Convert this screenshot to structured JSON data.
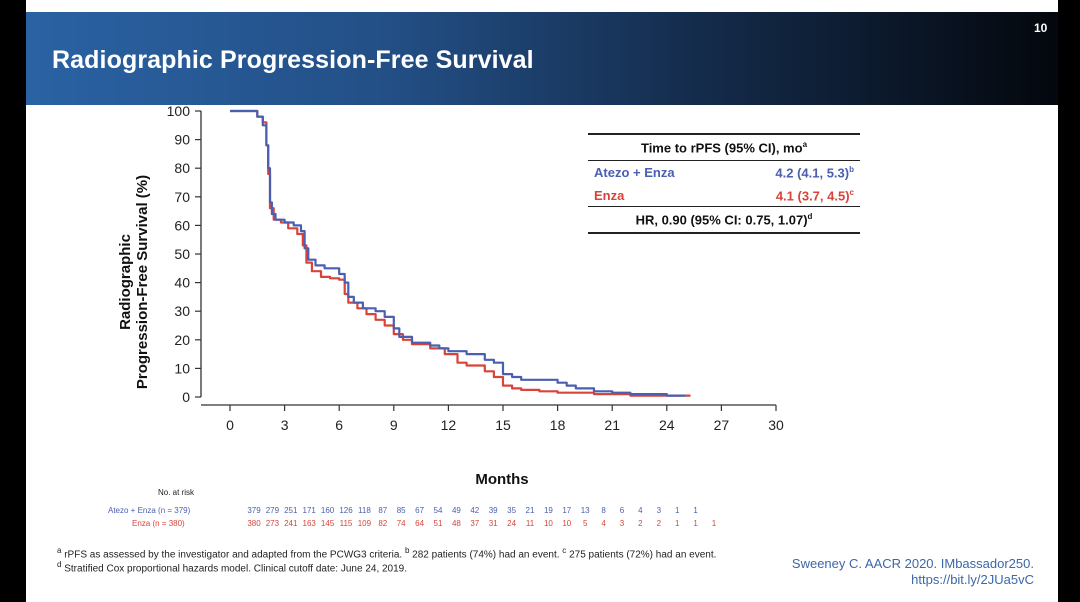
{
  "slide": {
    "title": "Radiographic Progression-Free Survival",
    "page_number": "10"
  },
  "chart_data": {
    "type": "line",
    "title": "",
    "xlabel": "Months",
    "ylabel_line1": "Radiographic",
    "ylabel_line2": "Progression-Free Survival (%)",
    "xlim": [
      0,
      30
    ],
    "ylim": [
      0,
      100
    ],
    "x_ticks": [
      0,
      3,
      6,
      9,
      12,
      15,
      18,
      21,
      24,
      27,
      30
    ],
    "y_ticks": [
      0,
      10,
      20,
      30,
      40,
      50,
      60,
      70,
      80,
      90,
      100
    ],
    "series": [
      {
        "name": "Atezo + Enza",
        "color": "#4a5fb0",
        "points": [
          [
            0,
            100
          ],
          [
            1,
            100
          ],
          [
            1.5,
            98
          ],
          [
            1.8,
            95
          ],
          [
            2.0,
            88
          ],
          [
            2.1,
            80
          ],
          [
            2.2,
            68
          ],
          [
            2.3,
            64
          ],
          [
            2.5,
            62
          ],
          [
            3.0,
            61
          ],
          [
            3.5,
            60
          ],
          [
            3.9,
            58
          ],
          [
            4.1,
            52
          ],
          [
            4.3,
            48
          ],
          [
            4.7,
            46
          ],
          [
            5.2,
            45
          ],
          [
            6.0,
            43
          ],
          [
            6.3,
            40
          ],
          [
            6.5,
            35
          ],
          [
            6.8,
            33
          ],
          [
            7.3,
            31
          ],
          [
            8.0,
            30
          ],
          [
            8.5,
            28
          ],
          [
            9.0,
            24
          ],
          [
            9.3,
            21
          ],
          [
            10.0,
            19
          ],
          [
            11.0,
            18
          ],
          [
            11.5,
            17
          ],
          [
            12.0,
            16
          ],
          [
            13.0,
            15
          ],
          [
            14.0,
            13
          ],
          [
            14.5,
            12
          ],
          [
            15.0,
            8
          ],
          [
            15.5,
            7
          ],
          [
            16.0,
            6
          ],
          [
            17.0,
            6
          ],
          [
            18.0,
            5
          ],
          [
            18.5,
            4
          ],
          [
            19.0,
            3
          ],
          [
            20.0,
            2
          ],
          [
            21.0,
            1.5
          ],
          [
            22.0,
            1
          ],
          [
            23.0,
            1
          ],
          [
            24.0,
            0.5
          ],
          [
            25.0,
            0.5
          ]
        ]
      },
      {
        "name": "Enza",
        "color": "#d8443a",
        "points": [
          [
            0,
            100
          ],
          [
            1,
            100
          ],
          [
            1.5,
            98
          ],
          [
            1.8,
            96
          ],
          [
            2.0,
            88
          ],
          [
            2.1,
            78
          ],
          [
            2.2,
            66
          ],
          [
            2.4,
            62
          ],
          [
            2.8,
            61
          ],
          [
            3.2,
            59
          ],
          [
            3.7,
            57
          ],
          [
            4.0,
            53
          ],
          [
            4.2,
            47
          ],
          [
            4.5,
            44
          ],
          [
            5.0,
            42
          ],
          [
            5.5,
            41.5
          ],
          [
            6.0,
            41
          ],
          [
            6.3,
            36
          ],
          [
            6.5,
            33
          ],
          [
            7.0,
            31
          ],
          [
            7.5,
            29
          ],
          [
            8.0,
            27
          ],
          [
            8.5,
            25
          ],
          [
            9.0,
            22
          ],
          [
            9.5,
            20
          ],
          [
            10.0,
            18.5
          ],
          [
            11.0,
            17
          ],
          [
            11.8,
            15
          ],
          [
            12.5,
            12
          ],
          [
            13.0,
            11
          ],
          [
            14.0,
            9
          ],
          [
            14.5,
            7
          ],
          [
            15.0,
            4
          ],
          [
            15.5,
            3
          ],
          [
            16.0,
            2.5
          ],
          [
            17.0,
            2
          ],
          [
            18.0,
            1.5
          ],
          [
            19.0,
            1.5
          ],
          [
            20.0,
            1
          ],
          [
            21.0,
            1
          ],
          [
            22.0,
            0.5
          ],
          [
            23.0,
            0.5
          ],
          [
            24.0,
            0.5
          ],
          [
            25.3,
            0.5
          ]
        ]
      }
    ],
    "at_risk": {
      "title": "No. at risk",
      "rows": [
        {
          "label": "Atezo + Enza (n = 379)",
          "color": "#4a5fb0",
          "values": [
            "379",
            "279",
            "251",
            "171",
            "160",
            "126",
            "118",
            "87",
            "85",
            "67",
            "54",
            "49",
            "42",
            "39",
            "35",
            "21",
            "19",
            "17",
            "13",
            "8",
            "6",
            "4",
            "3",
            "1",
            "1"
          ]
        },
        {
          "label": "Enza (n = 380)",
          "color": "#d8443a",
          "values": [
            "380",
            "273",
            "241",
            "163",
            "145",
            "115",
            "109",
            "82",
            "74",
            "64",
            "51",
            "48",
            "37",
            "31",
            "24",
            "11",
            "10",
            "10",
            "5",
            "4",
            "3",
            "2",
            "2",
            "1",
            "1",
            "1"
          ]
        }
      ]
    }
  },
  "legend_table": {
    "header": "Time to rPFS (95% CI), mo",
    "header_sup": "a",
    "rows": [
      {
        "name": "Atezo + Enza",
        "value": "4.2 (4.1, 5.3)",
        "sup": "b"
      },
      {
        "name": "Enza",
        "value": "4.1 (3.7, 4.5)",
        "sup": "c"
      }
    ],
    "footer": "HR, 0.90 (95% CI: 0.75, 1.07)",
    "footer_sup": "d"
  },
  "footnotes": {
    "line1_a_sup": "a",
    "line1_a": " rPFS as assessed by the investigator and adapted from the PCWG3 criteria. ",
    "line1_b_sup": "b",
    "line1_b": " 282 patients (74%) had an event. ",
    "line1_c_sup": "c",
    "line1_c": " 275 patients (72%) had an event.",
    "line2_sup": "d",
    "line2": " Stratified Cox proportional hazards model. Clinical cutoff date: June 24, 2019."
  },
  "citation": {
    "line1": "Sweeney C. AACR 2020. IMbassador250.",
    "line2": "https://bit.ly/2JUa5vC"
  }
}
